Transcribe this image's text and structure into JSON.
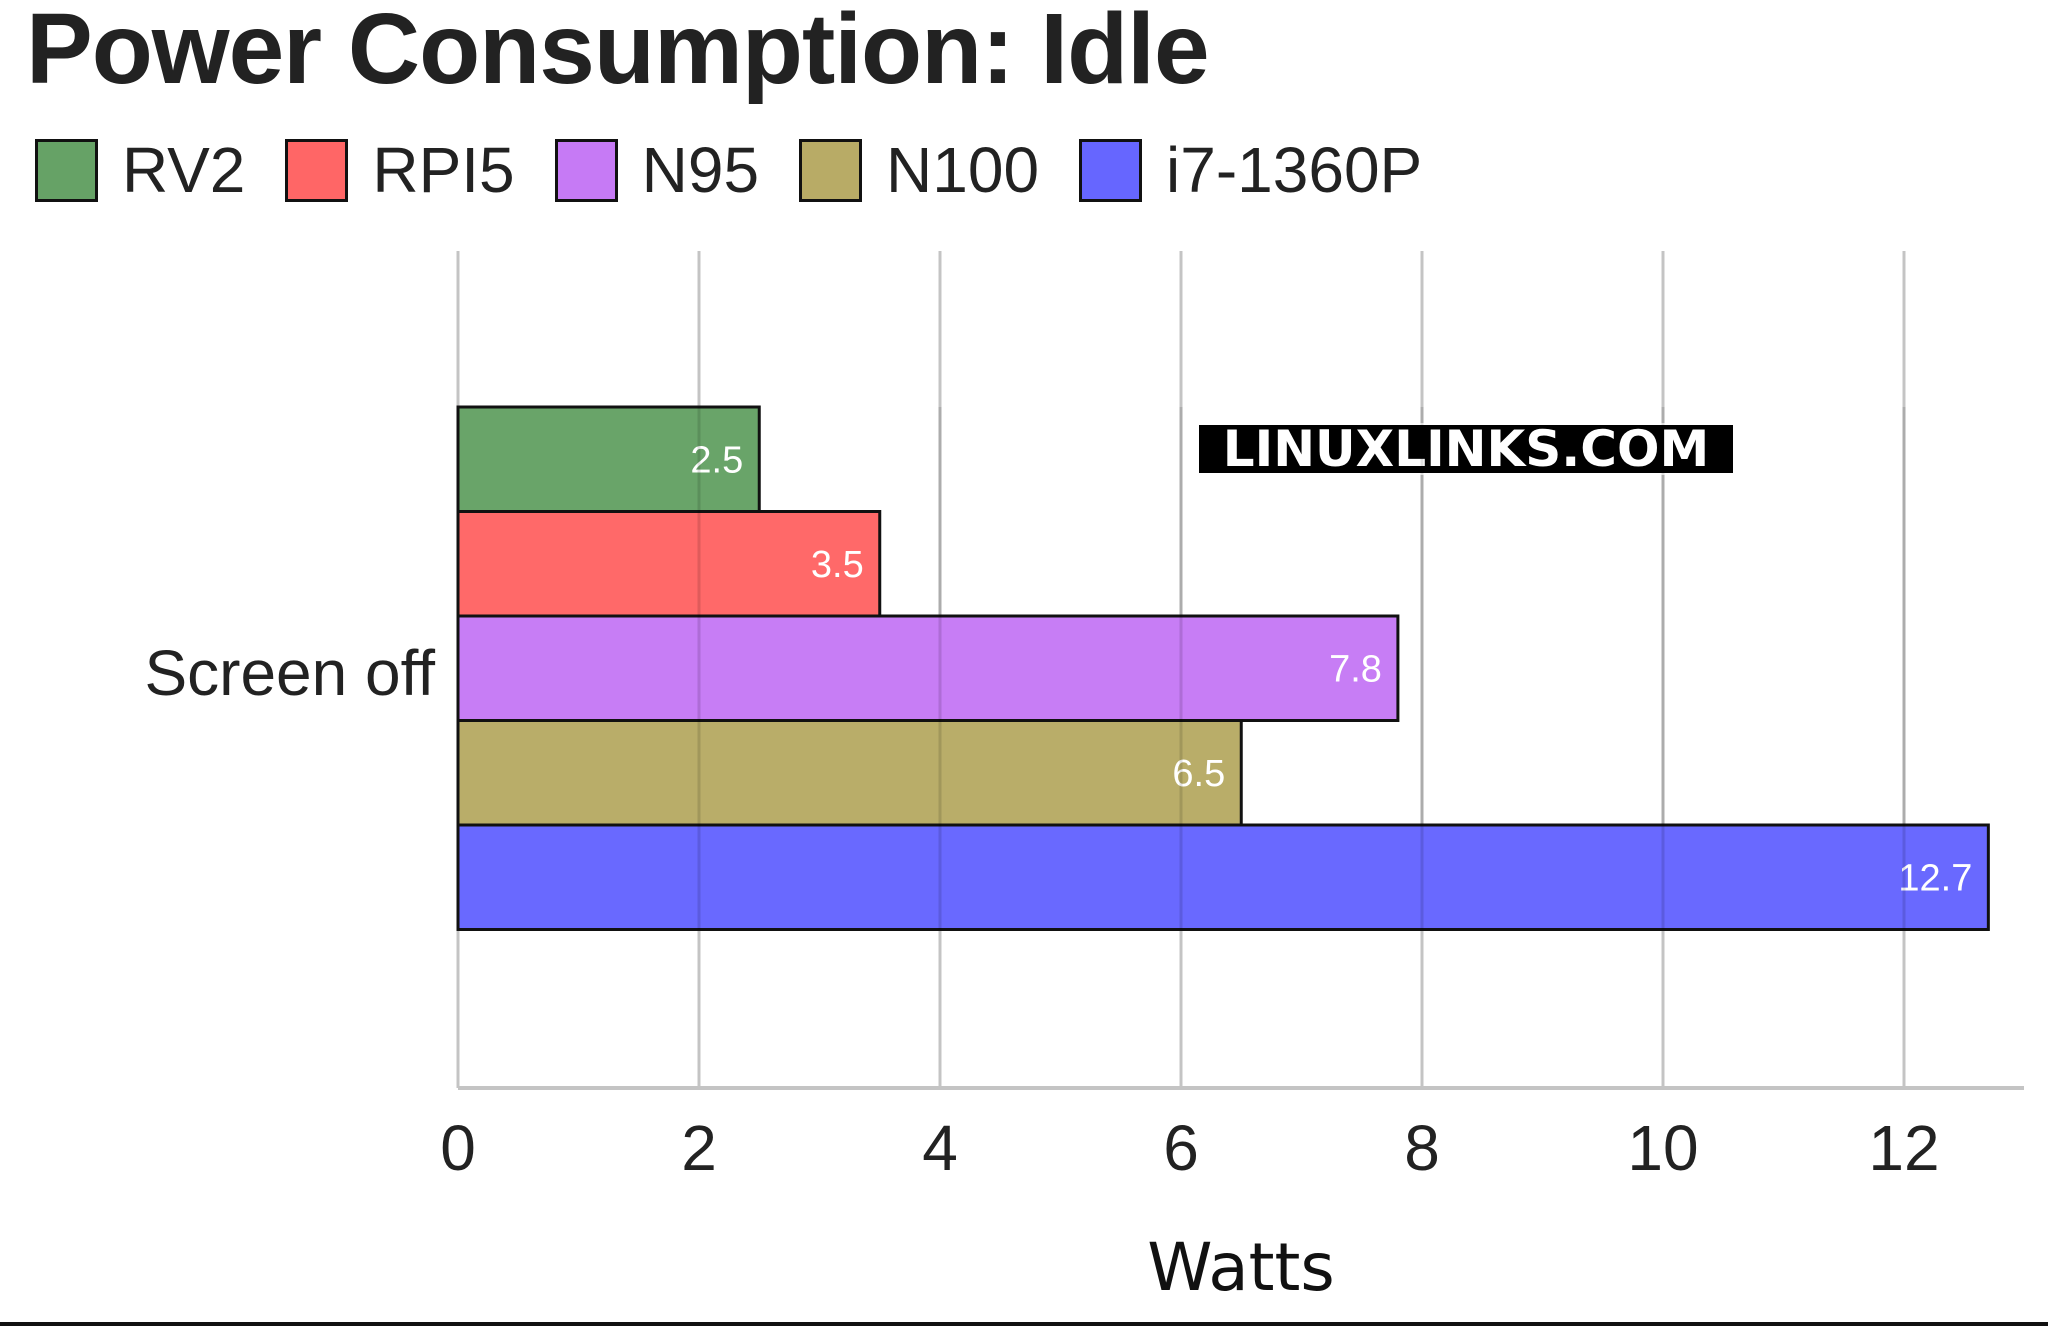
{
  "chart_data": {
    "type": "bar",
    "orientation": "horizontal",
    "title": "Power Consumption: Idle",
    "categories": [
      "Screen off"
    ],
    "series": [
      {
        "name": "RV2",
        "values": [
          2.5
        ],
        "color": "#66a266"
      },
      {
        "name": "RPI5",
        "values": [
          3.5
        ],
        "color": "#ff6666"
      },
      {
        "name": "N95",
        "values": [
          7.8
        ],
        "color": "#c67af5"
      },
      {
        "name": "N100",
        "values": [
          6.5
        ],
        "color": "#b8ab66"
      },
      {
        "name": "i7-1360P",
        "values": [
          12.7
        ],
        "color": "#6666ff"
      }
    ],
    "xlabel": "Watts",
    "ylabel": "",
    "xlim": [
      0,
      13
    ],
    "xticks": [
      "0",
      "2",
      "4",
      "6",
      "8",
      "10",
      "12"
    ],
    "grid": true,
    "legend_position": "top-left",
    "watermark": "LINUXLINKS.COM"
  }
}
